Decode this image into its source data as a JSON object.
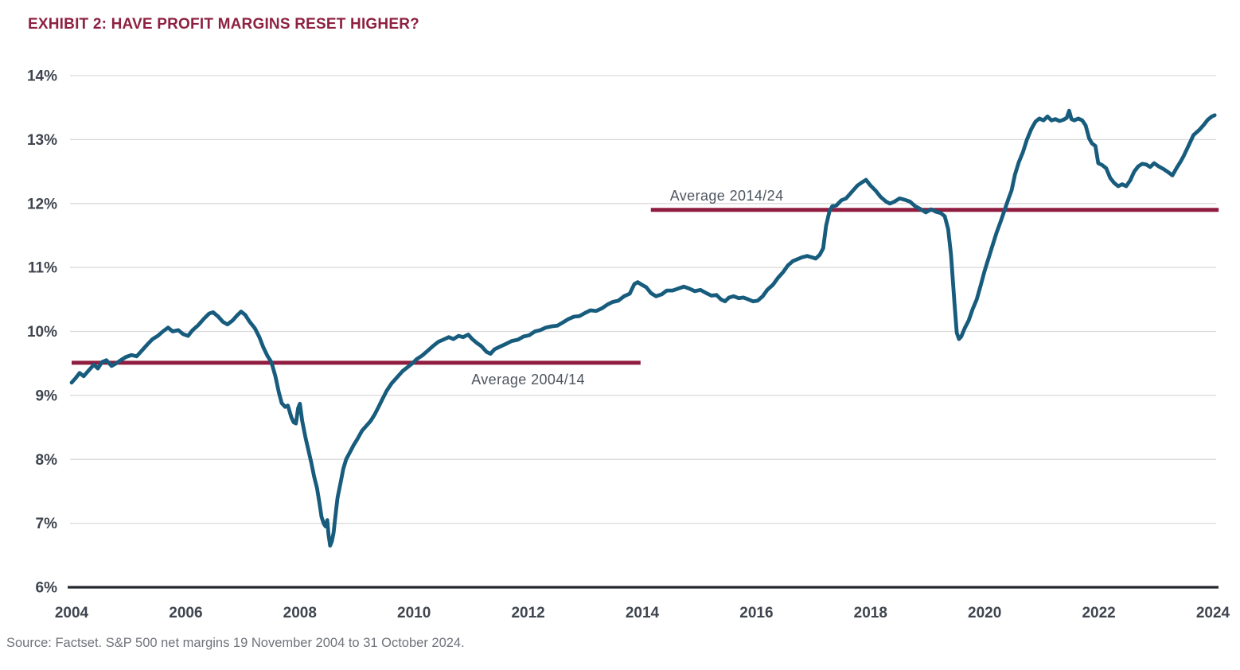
{
  "page": {
    "title": "EXHIBIT 2: HAVE PROFIT MARGINS RESET HIGHER?",
    "source": "Source: Factset. S&P 500 net margins 19 November 2004 to 31 October 2024."
  },
  "colors": {
    "title": "#8E2142",
    "series_line": "#175C7D",
    "average_line": "#8F1D3F",
    "gridline": "#D9D9D9",
    "axis_line": "#23272E",
    "tick_label": "#3E454F",
    "annotation_text": "#4D5560",
    "source_text": "#6F737A"
  },
  "chart_data": {
    "type": "line",
    "title": "EXHIBIT 2: HAVE PROFIT MARGINS RESET HIGHER?",
    "xlabel": "",
    "ylabel": "",
    "xlim": [
      2004,
      2024.1
    ],
    "ylim": [
      6,
      14
    ],
    "x_ticks": [
      2004,
      2006,
      2008,
      2010,
      2012,
      2014,
      2016,
      2018,
      2020,
      2022,
      2024
    ],
    "y_ticks": [
      6,
      7,
      8,
      9,
      10,
      11,
      12,
      13,
      14
    ],
    "y_tick_suffix": "%",
    "grid": "horizontal",
    "legend": "none",
    "series": [
      {
        "name": "S&P 500 net margin",
        "points": [
          [
            2004.0,
            9.2
          ],
          [
            2004.07,
            9.27
          ],
          [
            2004.14,
            9.35
          ],
          [
            2004.21,
            9.3
          ],
          [
            2004.31,
            9.4
          ],
          [
            2004.39,
            9.48
          ],
          [
            2004.46,
            9.42
          ],
          [
            2004.53,
            9.52
          ],
          [
            2004.61,
            9.55
          ],
          [
            2004.7,
            9.46
          ],
          [
            2004.78,
            9.5
          ],
          [
            2004.86,
            9.55
          ],
          [
            2004.95,
            9.6
          ],
          [
            2005.05,
            9.63
          ],
          [
            2005.14,
            9.61
          ],
          [
            2005.23,
            9.7
          ],
          [
            2005.33,
            9.8
          ],
          [
            2005.42,
            9.88
          ],
          [
            2005.51,
            9.93
          ],
          [
            2005.6,
            10.0
          ],
          [
            2005.69,
            10.06
          ],
          [
            2005.77,
            10.0
          ],
          [
            2005.87,
            10.02
          ],
          [
            2005.95,
            9.96
          ],
          [
            2006.04,
            9.93
          ],
          [
            2006.12,
            10.02
          ],
          [
            2006.22,
            10.1
          ],
          [
            2006.32,
            10.2
          ],
          [
            2006.41,
            10.28
          ],
          [
            2006.48,
            10.3
          ],
          [
            2006.57,
            10.23
          ],
          [
            2006.65,
            10.15
          ],
          [
            2006.73,
            10.11
          ],
          [
            2006.82,
            10.17
          ],
          [
            2006.9,
            10.25
          ],
          [
            2006.97,
            10.31
          ],
          [
            2007.04,
            10.26
          ],
          [
            2007.12,
            10.15
          ],
          [
            2007.21,
            10.05
          ],
          [
            2007.29,
            9.91
          ],
          [
            2007.36,
            9.75
          ],
          [
            2007.43,
            9.62
          ],
          [
            2007.5,
            9.52
          ],
          [
            2007.57,
            9.3
          ],
          [
            2007.63,
            9.05
          ],
          [
            2007.68,
            8.88
          ],
          [
            2007.74,
            8.82
          ],
          [
            2007.79,
            8.84
          ],
          [
            2007.85,
            8.66
          ],
          [
            2007.89,
            8.58
          ],
          [
            2007.93,
            8.56
          ],
          [
            2007.97,
            8.8
          ],
          [
            2008.0,
            8.87
          ],
          [
            2008.04,
            8.6
          ],
          [
            2008.1,
            8.33
          ],
          [
            2008.16,
            8.1
          ],
          [
            2008.2,
            7.95
          ],
          [
            2008.25,
            7.73
          ],
          [
            2008.3,
            7.55
          ],
          [
            2008.34,
            7.33
          ],
          [
            2008.38,
            7.1
          ],
          [
            2008.42,
            6.99
          ],
          [
            2008.45,
            6.95
          ],
          [
            2008.48,
            7.05
          ],
          [
            2008.5,
            6.83
          ],
          [
            2008.53,
            6.65
          ],
          [
            2008.56,
            6.72
          ],
          [
            2008.59,
            6.85
          ],
          [
            2008.62,
            7.1
          ],
          [
            2008.66,
            7.4
          ],
          [
            2008.71,
            7.62
          ],
          [
            2008.76,
            7.85
          ],
          [
            2008.81,
            8.0
          ],
          [
            2008.87,
            8.1
          ],
          [
            2008.94,
            8.22
          ],
          [
            2009.01,
            8.32
          ],
          [
            2009.09,
            8.45
          ],
          [
            2009.17,
            8.53
          ],
          [
            2009.24,
            8.6
          ],
          [
            2009.31,
            8.7
          ],
          [
            2009.38,
            8.82
          ],
          [
            2009.45,
            8.95
          ],
          [
            2009.52,
            9.07
          ],
          [
            2009.61,
            9.19
          ],
          [
            2009.7,
            9.28
          ],
          [
            2009.8,
            9.38
          ],
          [
            2009.9,
            9.45
          ],
          [
            2009.97,
            9.5
          ],
          [
            2010.05,
            9.57
          ],
          [
            2010.14,
            9.62
          ],
          [
            2010.23,
            9.69
          ],
          [
            2010.33,
            9.77
          ],
          [
            2010.43,
            9.84
          ],
          [
            2010.51,
            9.87
          ],
          [
            2010.61,
            9.91
          ],
          [
            2010.69,
            9.88
          ],
          [
            2010.78,
            9.93
          ],
          [
            2010.86,
            9.91
          ],
          [
            2010.95,
            9.95
          ],
          [
            2011.02,
            9.88
          ],
          [
            2011.1,
            9.82
          ],
          [
            2011.18,
            9.77
          ],
          [
            2011.27,
            9.68
          ],
          [
            2011.34,
            9.65
          ],
          [
            2011.41,
            9.72
          ],
          [
            2011.5,
            9.76
          ],
          [
            2011.6,
            9.8
          ],
          [
            2011.71,
            9.85
          ],
          [
            2011.82,
            9.87
          ],
          [
            2011.92,
            9.92
          ],
          [
            2012.02,
            9.94
          ],
          [
            2012.12,
            10.0
          ],
          [
            2012.21,
            10.02
          ],
          [
            2012.31,
            10.06
          ],
          [
            2012.41,
            10.08
          ],
          [
            2012.51,
            10.09
          ],
          [
            2012.61,
            10.14
          ],
          [
            2012.7,
            10.19
          ],
          [
            2012.8,
            10.23
          ],
          [
            2012.9,
            10.24
          ],
          [
            2013.0,
            10.29
          ],
          [
            2013.09,
            10.33
          ],
          [
            2013.19,
            10.32
          ],
          [
            2013.29,
            10.36
          ],
          [
            2013.39,
            10.42
          ],
          [
            2013.48,
            10.46
          ],
          [
            2013.58,
            10.48
          ],
          [
            2013.68,
            10.55
          ],
          [
            2013.78,
            10.59
          ],
          [
            2013.86,
            10.74
          ],
          [
            2013.92,
            10.77
          ],
          [
            2013.99,
            10.73
          ],
          [
            2014.07,
            10.69
          ],
          [
            2014.15,
            10.6
          ],
          [
            2014.24,
            10.55
          ],
          [
            2014.34,
            10.58
          ],
          [
            2014.43,
            10.64
          ],
          [
            2014.53,
            10.64
          ],
          [
            2014.63,
            10.67
          ],
          [
            2014.73,
            10.7
          ],
          [
            2014.82,
            10.67
          ],
          [
            2014.92,
            10.63
          ],
          [
            2015.02,
            10.65
          ],
          [
            2015.12,
            10.6
          ],
          [
            2015.21,
            10.56
          ],
          [
            2015.3,
            10.57
          ],
          [
            2015.38,
            10.5
          ],
          [
            2015.45,
            10.47
          ],
          [
            2015.52,
            10.53
          ],
          [
            2015.6,
            10.55
          ],
          [
            2015.69,
            10.52
          ],
          [
            2015.77,
            10.53
          ],
          [
            2015.86,
            10.5
          ],
          [
            2015.94,
            10.47
          ],
          [
            2016.02,
            10.48
          ],
          [
            2016.11,
            10.55
          ],
          [
            2016.19,
            10.65
          ],
          [
            2016.29,
            10.73
          ],
          [
            2016.38,
            10.84
          ],
          [
            2016.47,
            10.93
          ],
          [
            2016.55,
            11.03
          ],
          [
            2016.64,
            11.1
          ],
          [
            2016.72,
            11.13
          ],
          [
            2016.8,
            11.16
          ],
          [
            2016.89,
            11.18
          ],
          [
            2016.97,
            11.16
          ],
          [
            2017.04,
            11.14
          ],
          [
            2017.11,
            11.2
          ],
          [
            2017.17,
            11.3
          ],
          [
            2017.22,
            11.65
          ],
          [
            2017.28,
            11.88
          ],
          [
            2017.33,
            11.96
          ],
          [
            2017.4,
            11.97
          ],
          [
            2017.49,
            12.05
          ],
          [
            2017.57,
            12.08
          ],
          [
            2017.67,
            12.18
          ],
          [
            2017.77,
            12.28
          ],
          [
            2017.85,
            12.33
          ],
          [
            2017.92,
            12.37
          ],
          [
            2018.0,
            12.28
          ],
          [
            2018.09,
            12.2
          ],
          [
            2018.18,
            12.1
          ],
          [
            2018.27,
            12.03
          ],
          [
            2018.34,
            12.0
          ],
          [
            2018.42,
            12.03
          ],
          [
            2018.51,
            12.08
          ],
          [
            2018.59,
            12.06
          ],
          [
            2018.69,
            12.03
          ],
          [
            2018.78,
            11.96
          ],
          [
            2018.88,
            11.91
          ],
          [
            2018.97,
            11.86
          ],
          [
            2019.06,
            11.91
          ],
          [
            2019.15,
            11.87
          ],
          [
            2019.23,
            11.85
          ],
          [
            2019.3,
            11.8
          ],
          [
            2019.36,
            11.6
          ],
          [
            2019.41,
            11.2
          ],
          [
            2019.47,
            10.45
          ],
          [
            2019.51,
            9.98
          ],
          [
            2019.55,
            9.88
          ],
          [
            2019.59,
            9.92
          ],
          [
            2019.65,
            10.05
          ],
          [
            2019.72,
            10.17
          ],
          [
            2019.79,
            10.35
          ],
          [
            2019.86,
            10.5
          ],
          [
            2019.93,
            10.72
          ],
          [
            2020.0,
            10.95
          ],
          [
            2020.07,
            11.15
          ],
          [
            2020.14,
            11.35
          ],
          [
            2020.21,
            11.55
          ],
          [
            2020.28,
            11.72
          ],
          [
            2020.35,
            11.9
          ],
          [
            2020.42,
            12.08
          ],
          [
            2020.47,
            12.2
          ],
          [
            2020.53,
            12.45
          ],
          [
            2020.6,
            12.65
          ],
          [
            2020.67,
            12.8
          ],
          [
            2020.74,
            13.0
          ],
          [
            2020.82,
            13.17
          ],
          [
            2020.89,
            13.28
          ],
          [
            2020.96,
            13.33
          ],
          [
            2021.03,
            13.3
          ],
          [
            2021.1,
            13.36
          ],
          [
            2021.17,
            13.3
          ],
          [
            2021.24,
            13.32
          ],
          [
            2021.31,
            13.29
          ],
          [
            2021.38,
            13.31
          ],
          [
            2021.44,
            13.34
          ],
          [
            2021.48,
            13.45
          ],
          [
            2021.52,
            13.32
          ],
          [
            2021.57,
            13.3
          ],
          [
            2021.64,
            13.33
          ],
          [
            2021.71,
            13.3
          ],
          [
            2021.77,
            13.22
          ],
          [
            2021.83,
            13.02
          ],
          [
            2021.88,
            12.94
          ],
          [
            2021.94,
            12.9
          ],
          [
            2021.99,
            12.63
          ],
          [
            2022.06,
            12.6
          ],
          [
            2022.13,
            12.55
          ],
          [
            2022.2,
            12.4
          ],
          [
            2022.27,
            12.32
          ],
          [
            2022.34,
            12.27
          ],
          [
            2022.41,
            12.3
          ],
          [
            2022.48,
            12.27
          ],
          [
            2022.55,
            12.36
          ],
          [
            2022.62,
            12.5
          ],
          [
            2022.69,
            12.58
          ],
          [
            2022.76,
            12.62
          ],
          [
            2022.83,
            12.61
          ],
          [
            2022.9,
            12.57
          ],
          [
            2022.97,
            12.63
          ],
          [
            2023.05,
            12.58
          ],
          [
            2023.13,
            12.54
          ],
          [
            2023.2,
            12.5
          ],
          [
            2023.29,
            12.44
          ],
          [
            2023.36,
            12.55
          ],
          [
            2023.43,
            12.65
          ],
          [
            2023.48,
            12.73
          ],
          [
            2023.57,
            12.9
          ],
          [
            2023.66,
            13.07
          ],
          [
            2023.76,
            13.15
          ],
          [
            2023.84,
            13.23
          ],
          [
            2023.91,
            13.31
          ],
          [
            2023.98,
            13.36
          ],
          [
            2024.03,
            13.38
          ]
        ]
      }
    ],
    "reference_lines": [
      {
        "label": "Average 2004/14",
        "value": 9.51,
        "x_start": 2004.0,
        "x_end": 2013.97,
        "label_x": 2012.0,
        "label_position": "below"
      },
      {
        "label": "Average 2014/24",
        "value": 11.9,
        "x_start": 2014.15,
        "x_end": 2024.1,
        "label_x": 2015.48,
        "label_position": "above"
      }
    ]
  }
}
